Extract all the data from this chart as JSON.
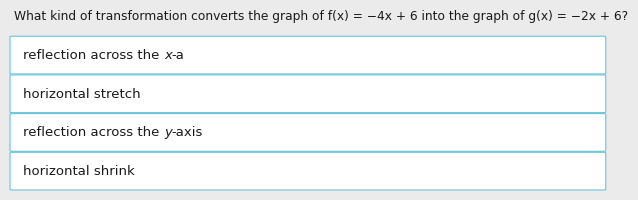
{
  "question_normal": "What kind of transformation converts the graph of f(x) = −4x + 6 into the graph of g(x) = −2x + 6?",
  "options": [
    "reflection across the x-axis",
    "horizontal stretch",
    "reflection across the y-axis",
    "horizontal shrink"
  ],
  "bg_color": "#ebebeb",
  "box_color": "#ffffff",
  "box_border_color": "#68c4d8",
  "question_fontsize": 8.8,
  "option_fontsize": 9.5,
  "text_color": "#1a1a1a"
}
